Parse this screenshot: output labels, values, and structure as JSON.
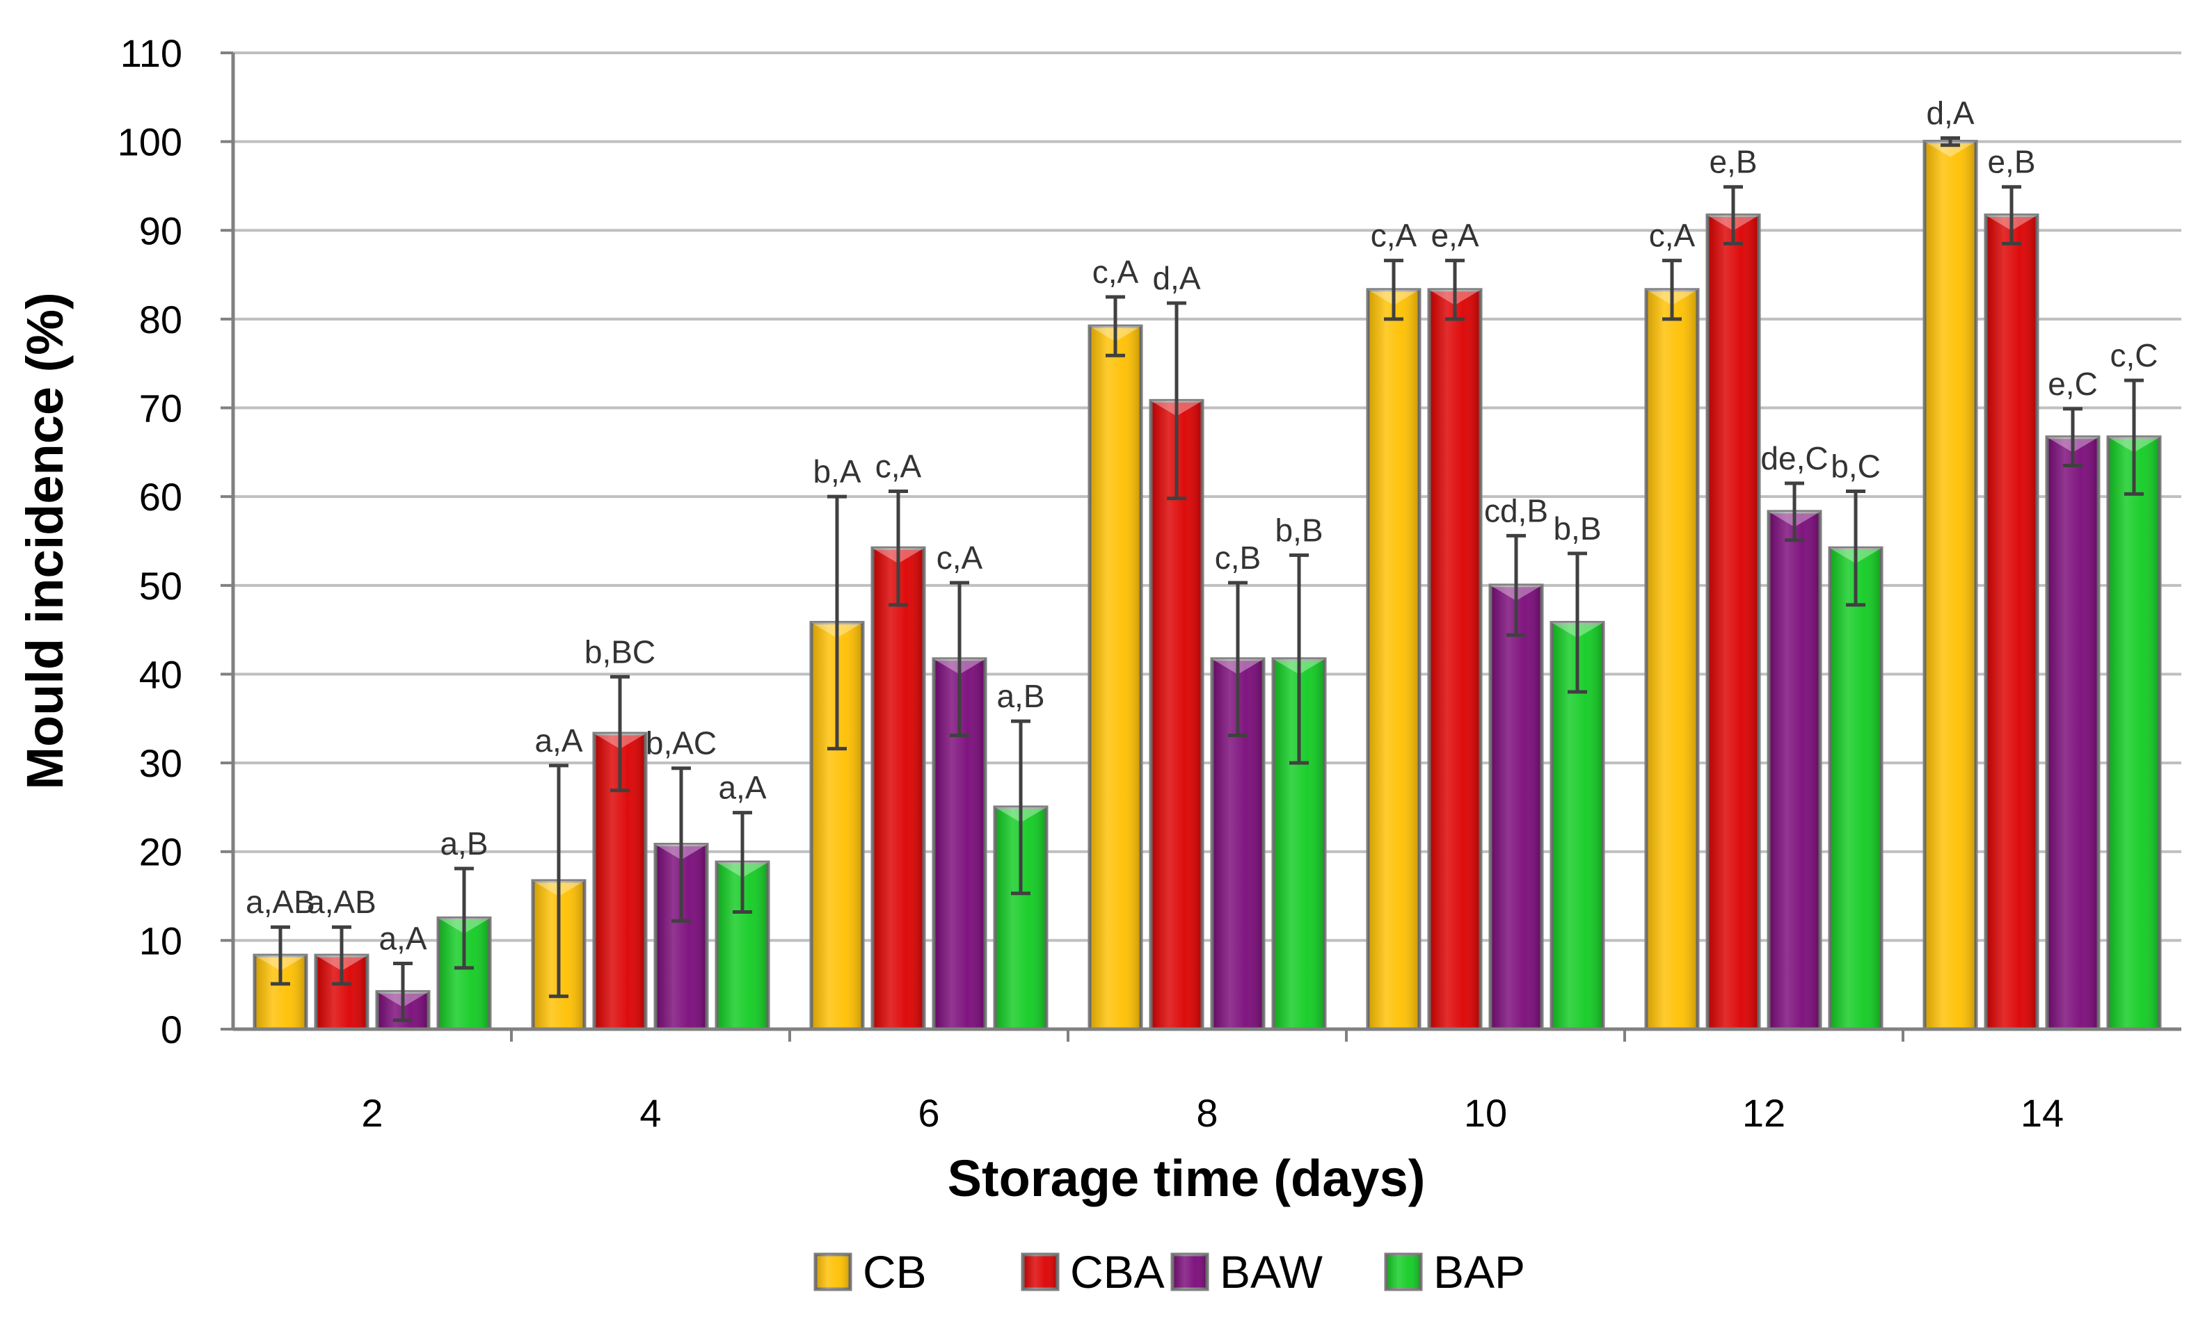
{
  "chart_data": {
    "type": "bar",
    "xlabel": "Storage time (days)",
    "ylabel": "Mould incidence (%)",
    "ylim": [
      0,
      110
    ],
    "yticks": [
      0,
      10,
      20,
      30,
      40,
      50,
      60,
      70,
      80,
      90,
      100,
      110
    ],
    "grid": true,
    "legend_position": "bottom",
    "categories": [
      "2",
      "4",
      "6",
      "8",
      "10",
      "12",
      "14"
    ],
    "series": [
      {
        "name": "CB",
        "color": "#FFC000",
        "values": [
          8.3,
          16.7,
          45.8,
          79.2,
          83.3,
          83.3,
          100
        ],
        "error": [
          3.2,
          13.0,
          14.2,
          3.3,
          3.3,
          3.3,
          0.4
        ],
        "labels": [
          "a,AB",
          "a,A",
          "b,A",
          "c,A",
          "c,A",
          "c,A",
          "d,A"
        ]
      },
      {
        "name": "CBA",
        "color": "#DD0000",
        "values": [
          8.3,
          33.3,
          54.2,
          70.8,
          83.3,
          91.7,
          91.7
        ],
        "error": [
          3.2,
          6.4,
          6.4,
          11.0,
          3.3,
          3.2,
          3.2
        ],
        "labels": [
          "a,AB",
          "b,BC",
          "c,A",
          "d,A",
          "e,A",
          "e,B",
          "e,B"
        ]
      },
      {
        "name": "BAW",
        "color": "#7A0A7A",
        "values": [
          4.2,
          20.8,
          41.7,
          41.7,
          50.0,
          58.3,
          66.7
        ],
        "error": [
          3.2,
          8.6,
          8.6,
          8.6,
          5.6,
          3.2,
          3.2
        ],
        "labels": [
          "a,A",
          "b,AC",
          "c,A",
          "c,B",
          "cd,B",
          "de,C",
          "e,C"
        ]
      },
      {
        "name": "BAP",
        "color": "#11CC22",
        "values": [
          12.5,
          18.8,
          25.0,
          41.7,
          45.8,
          54.2,
          66.7
        ],
        "error": [
          5.6,
          5.6,
          9.7,
          11.7,
          7.8,
          6.4,
          6.4
        ],
        "labels": [
          "a,B",
          "a,A",
          "a,B",
          "b,B",
          "b,B",
          "b,C",
          "c,C"
        ]
      }
    ]
  }
}
